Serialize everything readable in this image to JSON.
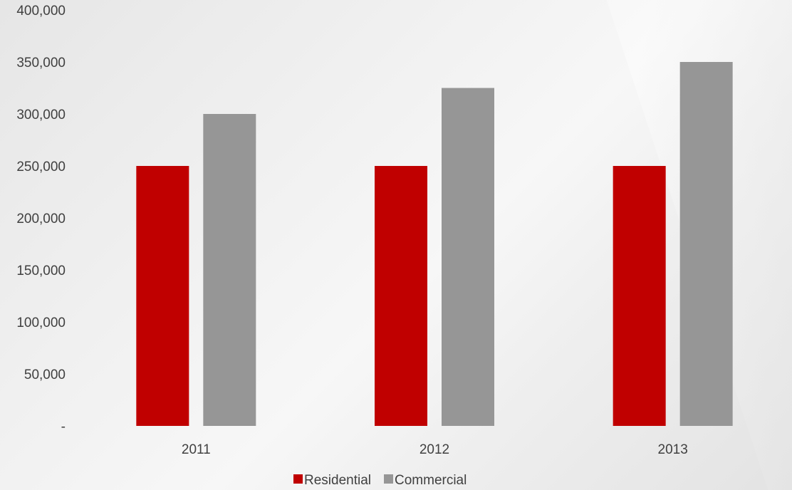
{
  "chart_data": {
    "type": "bar",
    "title": "",
    "xlabel": "",
    "ylabel": "",
    "categories": [
      "2011",
      "2012",
      "2013"
    ],
    "ylim": [
      0,
      400000
    ],
    "yticks": [
      {
        "value": 0,
        "label": "-"
      },
      {
        "value": 50000,
        "label": "50,000"
      },
      {
        "value": 100000,
        "label": "100,000"
      },
      {
        "value": 150000,
        "label": "150,000"
      },
      {
        "value": 200000,
        "label": "200,000"
      },
      {
        "value": 250000,
        "label": "250,000"
      },
      {
        "value": 300000,
        "label": "300,000"
      },
      {
        "value": 350000,
        "label": "350,000"
      },
      {
        "value": 400000,
        "label": "400,000"
      }
    ],
    "grid": false,
    "legend_position": "bottom",
    "series": [
      {
        "name": "Residential",
        "color": "#c00000",
        "values": [
          250000,
          250000,
          250000
        ]
      },
      {
        "name": "Commercial",
        "color": "#969696",
        "values": [
          300000,
          325000,
          350000
        ]
      }
    ]
  }
}
